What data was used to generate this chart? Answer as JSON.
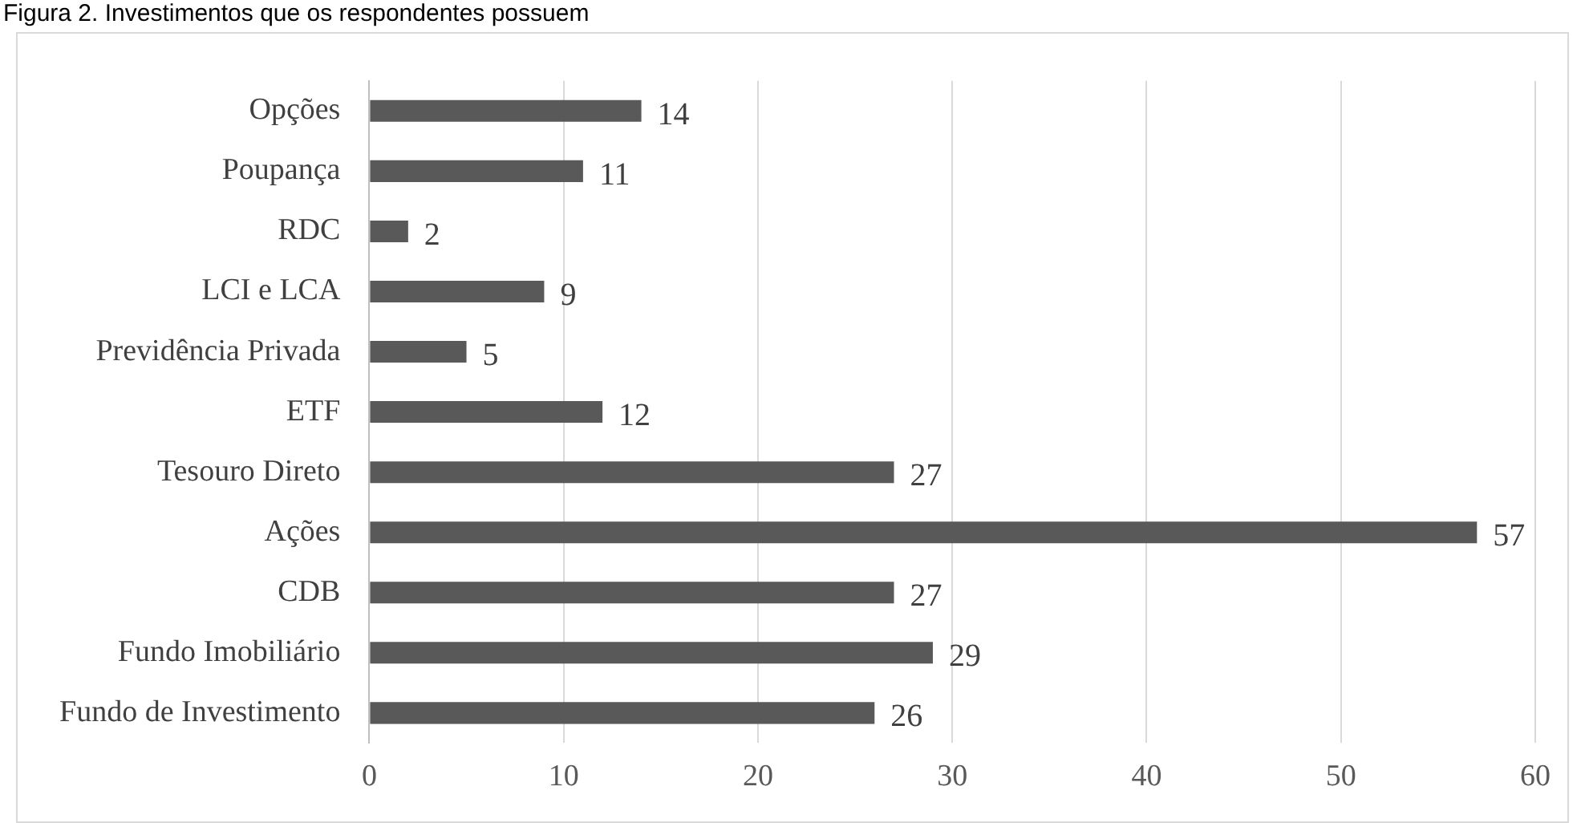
{
  "chart_data": {
    "type": "bar",
    "orientation": "horizontal",
    "title": "Figura 2. Investimentos que os respondentes possuem",
    "categories": [
      "Opções",
      "Poupança",
      "RDC",
      "LCI e LCA",
      "Previdência Privada",
      "ETF",
      "Tesouro Direto",
      "Ações",
      "CDB",
      "Fundo Imobiliário",
      "Fundo de Investimento"
    ],
    "values": [
      14,
      11,
      2,
      9,
      5,
      12,
      27,
      57,
      27,
      29,
      26
    ],
    "color": "#595959",
    "xlim": [
      0,
      60
    ],
    "xticks": [
      0,
      10,
      20,
      30,
      40,
      50,
      60
    ],
    "grid": "x",
    "legend": false,
    "data_labels": true
  }
}
